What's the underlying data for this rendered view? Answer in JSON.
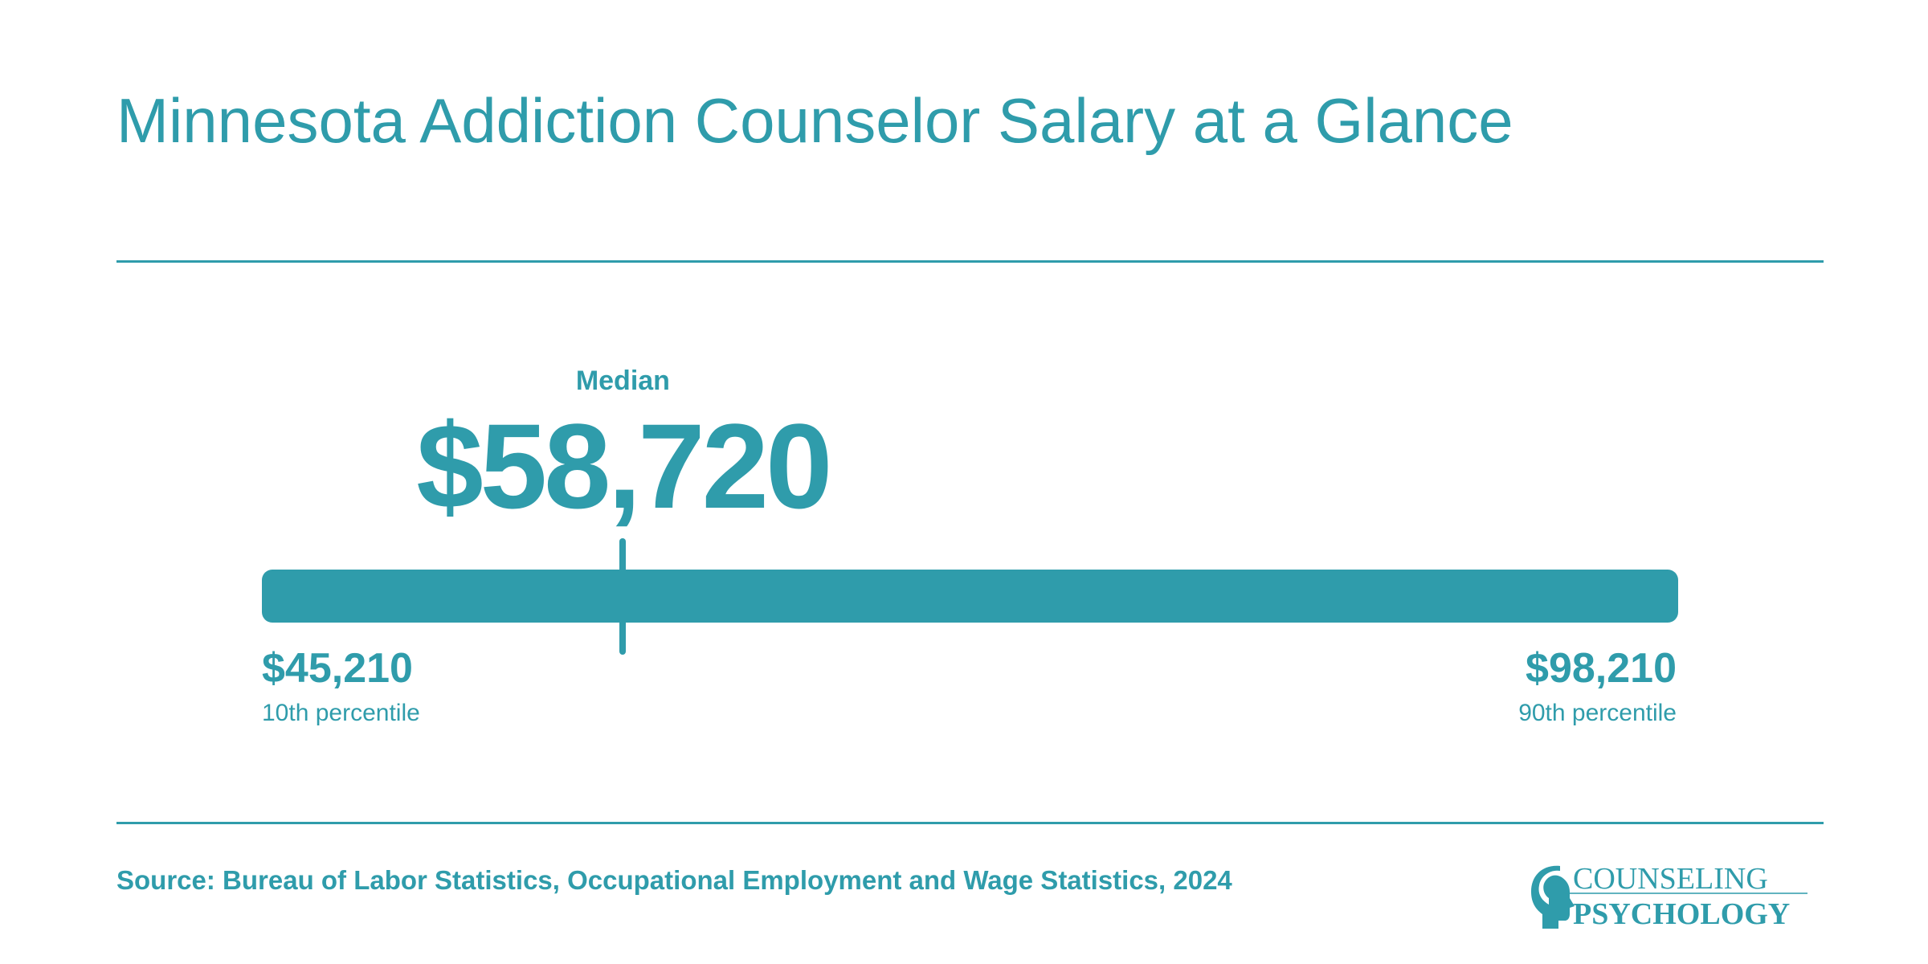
{
  "page": {
    "title": "Minnesota Addiction Counselor Salary at a Glance",
    "source": "Source: Bureau of Labor Statistics, Occupational Employment and Wage Statistics, 2024",
    "accent_color": "#2f9cab",
    "background_color": "#ffffff"
  },
  "chart_data": {
    "type": "range",
    "title": "Minnesota Addiction Counselor Salary at a Glance",
    "min": {
      "value": 45210,
      "label": "$45,210",
      "caption": "10th percentile"
    },
    "median": {
      "value": 58720,
      "label": "$58,720",
      "caption": "Median"
    },
    "max": {
      "value": 98210,
      "label": "$98,210",
      "caption": "90th percentile"
    },
    "range": [
      45210,
      98210
    ],
    "legend": "none",
    "grid": false
  },
  "logo": {
    "line1": "COUNSELING",
    "line2": "PSYCHOLOGY",
    "icon": "head-silhouette-icon"
  }
}
